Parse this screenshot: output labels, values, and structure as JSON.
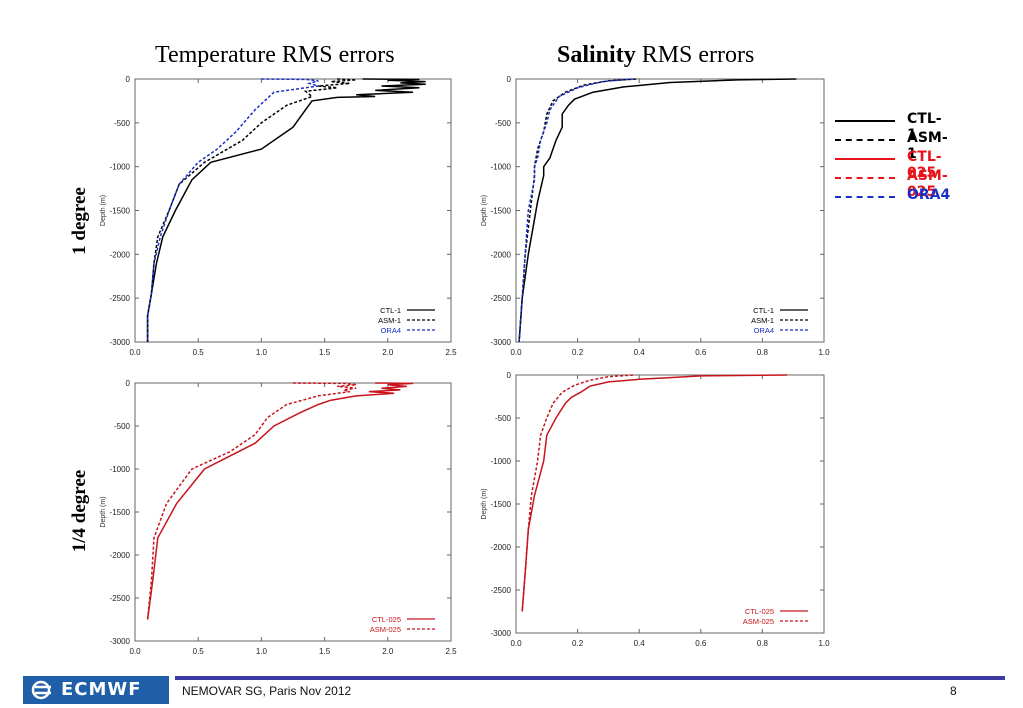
{
  "titles": {
    "temperature": "Temperature RMS errors",
    "salinity_bold": "Salinity",
    "salinity_rest": " RMS errors"
  },
  "row_labels": {
    "top": "1 degree",
    "bottom": "1/4 degree"
  },
  "legend": [
    {
      "label": "CTL-1",
      "color": "#000000",
      "dash": false
    },
    {
      "label": "ASM-1",
      "color": "#000000",
      "dash": true
    },
    {
      "label": "CTL-025",
      "color": "#e8141c",
      "dash": false
    },
    {
      "label": "ASM-025",
      "color": "#e8141c",
      "dash": true
    },
    {
      "label": "ORA4",
      "color": "#1a2fc8",
      "dash": true
    }
  ],
  "footer": {
    "text": "NEMOVAR SG, Paris Nov 2012",
    "page": "8",
    "logo": "ECMWF"
  },
  "colors": {
    "black": "#000000",
    "red": "#c8141c",
    "blue": "#1a2fc8",
    "footer_line": "#3a3aa0",
    "logo_bg": "#1f5fa8"
  },
  "chart_data": [
    {
      "type": "line",
      "title": "Temperature RMS errors",
      "ylabel": "Depth (m)",
      "xlim": [
        0,
        2.5
      ],
      "ylim": [
        -3000,
        0
      ],
      "xticks": [
        "0.0",
        "0.5",
        "1.0",
        "1.5",
        "2.0",
        "2.5"
      ],
      "yticks": [
        "0",
        "-500",
        "-1000",
        "-1500",
        "-2000",
        "-2500",
        "-3000"
      ],
      "series": [
        {
          "name": "CTL-1",
          "color": "#000000",
          "dash": false,
          "points": [
            [
              1.8,
              0
            ],
            [
              2.25,
              -5
            ],
            [
              2.0,
              -15
            ],
            [
              2.3,
              -30
            ],
            [
              2.1,
              -45
            ],
            [
              2.3,
              -60
            ],
            [
              1.95,
              -80
            ],
            [
              2.25,
              -100
            ],
            [
              1.9,
              -130
            ],
            [
              2.2,
              -150
            ],
            [
              1.75,
              -180
            ],
            [
              1.9,
              -200
            ],
            [
              1.6,
              -210
            ],
            [
              1.4,
              -250
            ],
            [
              1.35,
              -350
            ],
            [
              1.25,
              -550
            ],
            [
              1.0,
              -800
            ],
            [
              0.6,
              -950
            ],
            [
              0.45,
              -1150
            ],
            [
              0.32,
              -1500
            ],
            [
              0.22,
              -1800
            ],
            [
              0.17,
              -2100
            ],
            [
              0.13,
              -2450
            ],
            [
              0.1,
              -2700
            ],
            [
              0.1,
              -3000
            ]
          ]
        },
        {
          "name": "ASM-1",
          "color": "#000000",
          "dash": true,
          "points": [
            [
              1.6,
              0
            ],
            [
              1.75,
              -10
            ],
            [
              1.55,
              -30
            ],
            [
              1.7,
              -50
            ],
            [
              1.45,
              -80
            ],
            [
              1.6,
              -100
            ],
            [
              1.35,
              -140
            ],
            [
              1.4,
              -200
            ],
            [
              1.2,
              -300
            ],
            [
              1.0,
              -500
            ],
            [
              0.85,
              -700
            ],
            [
              0.55,
              -950
            ],
            [
              0.35,
              -1200
            ],
            [
              0.27,
              -1500
            ],
            [
              0.18,
              -1800
            ],
            [
              0.15,
              -2100
            ],
            [
              0.13,
              -2450
            ],
            [
              0.1,
              -2700
            ],
            [
              0.1,
              -3000
            ]
          ]
        },
        {
          "name": "ORA4",
          "color": "#1a2fc8",
          "dash": true,
          "points": [
            [
              1.0,
              0
            ],
            [
              1.35,
              -5
            ],
            [
              1.45,
              -20
            ],
            [
              1.38,
              -50
            ],
            [
              1.45,
              -80
            ],
            [
              1.1,
              -150
            ],
            [
              0.95,
              -350
            ],
            [
              0.8,
              -600
            ],
            [
              0.65,
              -800
            ],
            [
              0.5,
              -950
            ],
            [
              0.35,
              -1200
            ],
            [
              0.27,
              -1500
            ],
            [
              0.2,
              -1800
            ],
            [
              0.15,
              -2100
            ],
            [
              0.13,
              -2450
            ],
            [
              0.1,
              -2700
            ],
            [
              0.1,
              -3000
            ]
          ]
        }
      ],
      "legend_labels": [
        "CTL-1",
        "ASM-1",
        "ORA4"
      ]
    },
    {
      "type": "line",
      "title": "Salinity RMS errors",
      "ylabel": "Depth (m)",
      "xlim": [
        0,
        1.0
      ],
      "ylim": [
        -3000,
        0
      ],
      "xticks": [
        "0.0",
        "0.2",
        "0.4",
        "0.6",
        "0.8",
        "1.0"
      ],
      "yticks": [
        "0",
        "-500",
        "-1000",
        "-1500",
        "-2000",
        "-2500",
        "-3000"
      ],
      "series": [
        {
          "name": "CTL-1",
          "color": "#000000",
          "dash": false,
          "points": [
            [
              0.91,
              0
            ],
            [
              0.72,
              -10
            ],
            [
              0.5,
              -40
            ],
            [
              0.35,
              -90
            ],
            [
              0.25,
              -150
            ],
            [
              0.19,
              -230
            ],
            [
              0.17,
              -300
            ],
            [
              0.15,
              -400
            ],
            [
              0.15,
              -550
            ],
            [
              0.13,
              -700
            ],
            [
              0.11,
              -900
            ],
            [
              0.09,
              -1000
            ],
            [
              0.09,
              -1100
            ],
            [
              0.07,
              -1400
            ],
            [
              0.04,
              -2000
            ],
            [
              0.02,
              -2500
            ],
            [
              0.01,
              -3000
            ]
          ]
        },
        {
          "name": "ASM-1",
          "color": "#000000",
          "dash": true,
          "points": [
            [
              0.39,
              0
            ],
            [
              0.3,
              -20
            ],
            [
              0.22,
              -70
            ],
            [
              0.16,
              -150
            ],
            [
              0.12,
              -250
            ],
            [
              0.1,
              -400
            ],
            [
              0.09,
              -600
            ],
            [
              0.07,
              -800
            ],
            [
              0.06,
              -1000
            ],
            [
              0.06,
              -1100
            ],
            [
              0.05,
              -1400
            ],
            [
              0.03,
              -2000
            ],
            [
              0.02,
              -2500
            ],
            [
              0.01,
              -3000
            ]
          ]
        },
        {
          "name": "ORA4",
          "color": "#1a2fc8",
          "dash": true,
          "points": [
            [
              0.38,
              0
            ],
            [
              0.28,
              -30
            ],
            [
              0.2,
              -100
            ],
            [
              0.14,
              -200
            ],
            [
              0.11,
              -350
            ],
            [
              0.1,
              -500
            ],
            [
              0.08,
              -700
            ],
            [
              0.07,
              -900
            ],
            [
              0.06,
              -1000
            ],
            [
              0.06,
              -1150
            ],
            [
              0.04,
              -1500
            ],
            [
              0.03,
              -2000
            ],
            [
              0.02,
              -2500
            ],
            [
              0.01,
              -3000
            ]
          ]
        }
      ],
      "legend_labels": [
        "CTL-1",
        "ASM-1",
        "ORA4"
      ]
    },
    {
      "type": "line",
      "title": "",
      "ylabel": "Depth (m)",
      "xlim": [
        0,
        2.5
      ],
      "ylim": [
        -3000,
        0
      ],
      "xticks": [
        "0.0",
        "0.5",
        "1.0",
        "1.5",
        "2.0",
        "2.5"
      ],
      "yticks": [
        "0",
        "-500",
        "-1000",
        "-1500",
        "-2000",
        "-2500",
        "-3000"
      ],
      "series": [
        {
          "name": "CTL-025",
          "color": "#c8141c",
          "dash": false,
          "points": [
            [
              1.9,
              0
            ],
            [
              2.2,
              -5
            ],
            [
              2.0,
              -20
            ],
            [
              2.15,
              -40
            ],
            [
              1.95,
              -60
            ],
            [
              2.1,
              -80
            ],
            [
              1.85,
              -100
            ],
            [
              2.05,
              -120
            ],
            [
              1.75,
              -150
            ],
            [
              1.55,
              -200
            ],
            [
              1.45,
              -250
            ],
            [
              1.3,
              -350
            ],
            [
              1.1,
              -500
            ],
            [
              0.95,
              -700
            ],
            [
              0.55,
              -1000
            ],
            [
              0.33,
              -1400
            ],
            [
              0.18,
              -1800
            ],
            [
              0.14,
              -2300
            ],
            [
              0.1,
              -2750
            ]
          ]
        },
        {
          "name": "ASM-025",
          "color": "#c8141c",
          "dash": true,
          "points": [
            [
              1.25,
              0
            ],
            [
              1.65,
              -5
            ],
            [
              1.75,
              -20
            ],
            [
              1.6,
              -40
            ],
            [
              1.75,
              -60
            ],
            [
              1.65,
              -80
            ],
            [
              1.7,
              -100
            ],
            [
              1.45,
              -150
            ],
            [
              1.2,
              -250
            ],
            [
              1.05,
              -400
            ],
            [
              0.95,
              -600
            ],
            [
              0.75,
              -800
            ],
            [
              0.45,
              -1000
            ],
            [
              0.25,
              -1400
            ],
            [
              0.15,
              -1800
            ],
            [
              0.13,
              -2300
            ],
            [
              0.1,
              -2750
            ]
          ]
        }
      ],
      "legend_labels": [
        "CTL-025",
        "ASM-025"
      ]
    },
    {
      "type": "line",
      "title": "",
      "ylabel": "Depth (m)",
      "xlim": [
        0,
        1.0
      ],
      "ylim": [
        -3000,
        0
      ],
      "xticks": [
        "0.0",
        "0.2",
        "0.4",
        "0.6",
        "0.8",
        "1.0"
      ],
      "yticks": [
        "0",
        "-500",
        "-1000",
        "-1500",
        "-2000",
        "-2500",
        "-3000"
      ],
      "series": [
        {
          "name": "CTL-025",
          "color": "#c8141c",
          "dash": false,
          "points": [
            [
              0.88,
              0
            ],
            [
              0.6,
              -10
            ],
            [
              0.5,
              -30
            ],
            [
              0.4,
              -50
            ],
            [
              0.3,
              -80
            ],
            [
              0.24,
              -130
            ],
            [
              0.21,
              -200
            ],
            [
              0.18,
              -260
            ],
            [
              0.16,
              -330
            ],
            [
              0.13,
              -500
            ],
            [
              0.1,
              -700
            ],
            [
              0.09,
              -1000
            ],
            [
              0.06,
              -1400
            ],
            [
              0.04,
              -1800
            ],
            [
              0.03,
              -2300
            ],
            [
              0.02,
              -2750
            ]
          ]
        },
        {
          "name": "ASM-025",
          "color": "#c8141c",
          "dash": true,
          "points": [
            [
              0.38,
              0
            ],
            [
              0.3,
              -20
            ],
            [
              0.24,
              -60
            ],
            [
              0.19,
              -120
            ],
            [
              0.15,
              -200
            ],
            [
              0.12,
              -330
            ],
            [
              0.1,
              -500
            ],
            [
              0.08,
              -700
            ],
            [
              0.07,
              -1000
            ],
            [
              0.05,
              -1400
            ],
            [
              0.04,
              -1800
            ],
            [
              0.03,
              -2300
            ],
            [
              0.02,
              -2750
            ]
          ]
        }
      ],
      "legend_labels": [
        "CTL-025",
        "ASM-025"
      ]
    }
  ]
}
